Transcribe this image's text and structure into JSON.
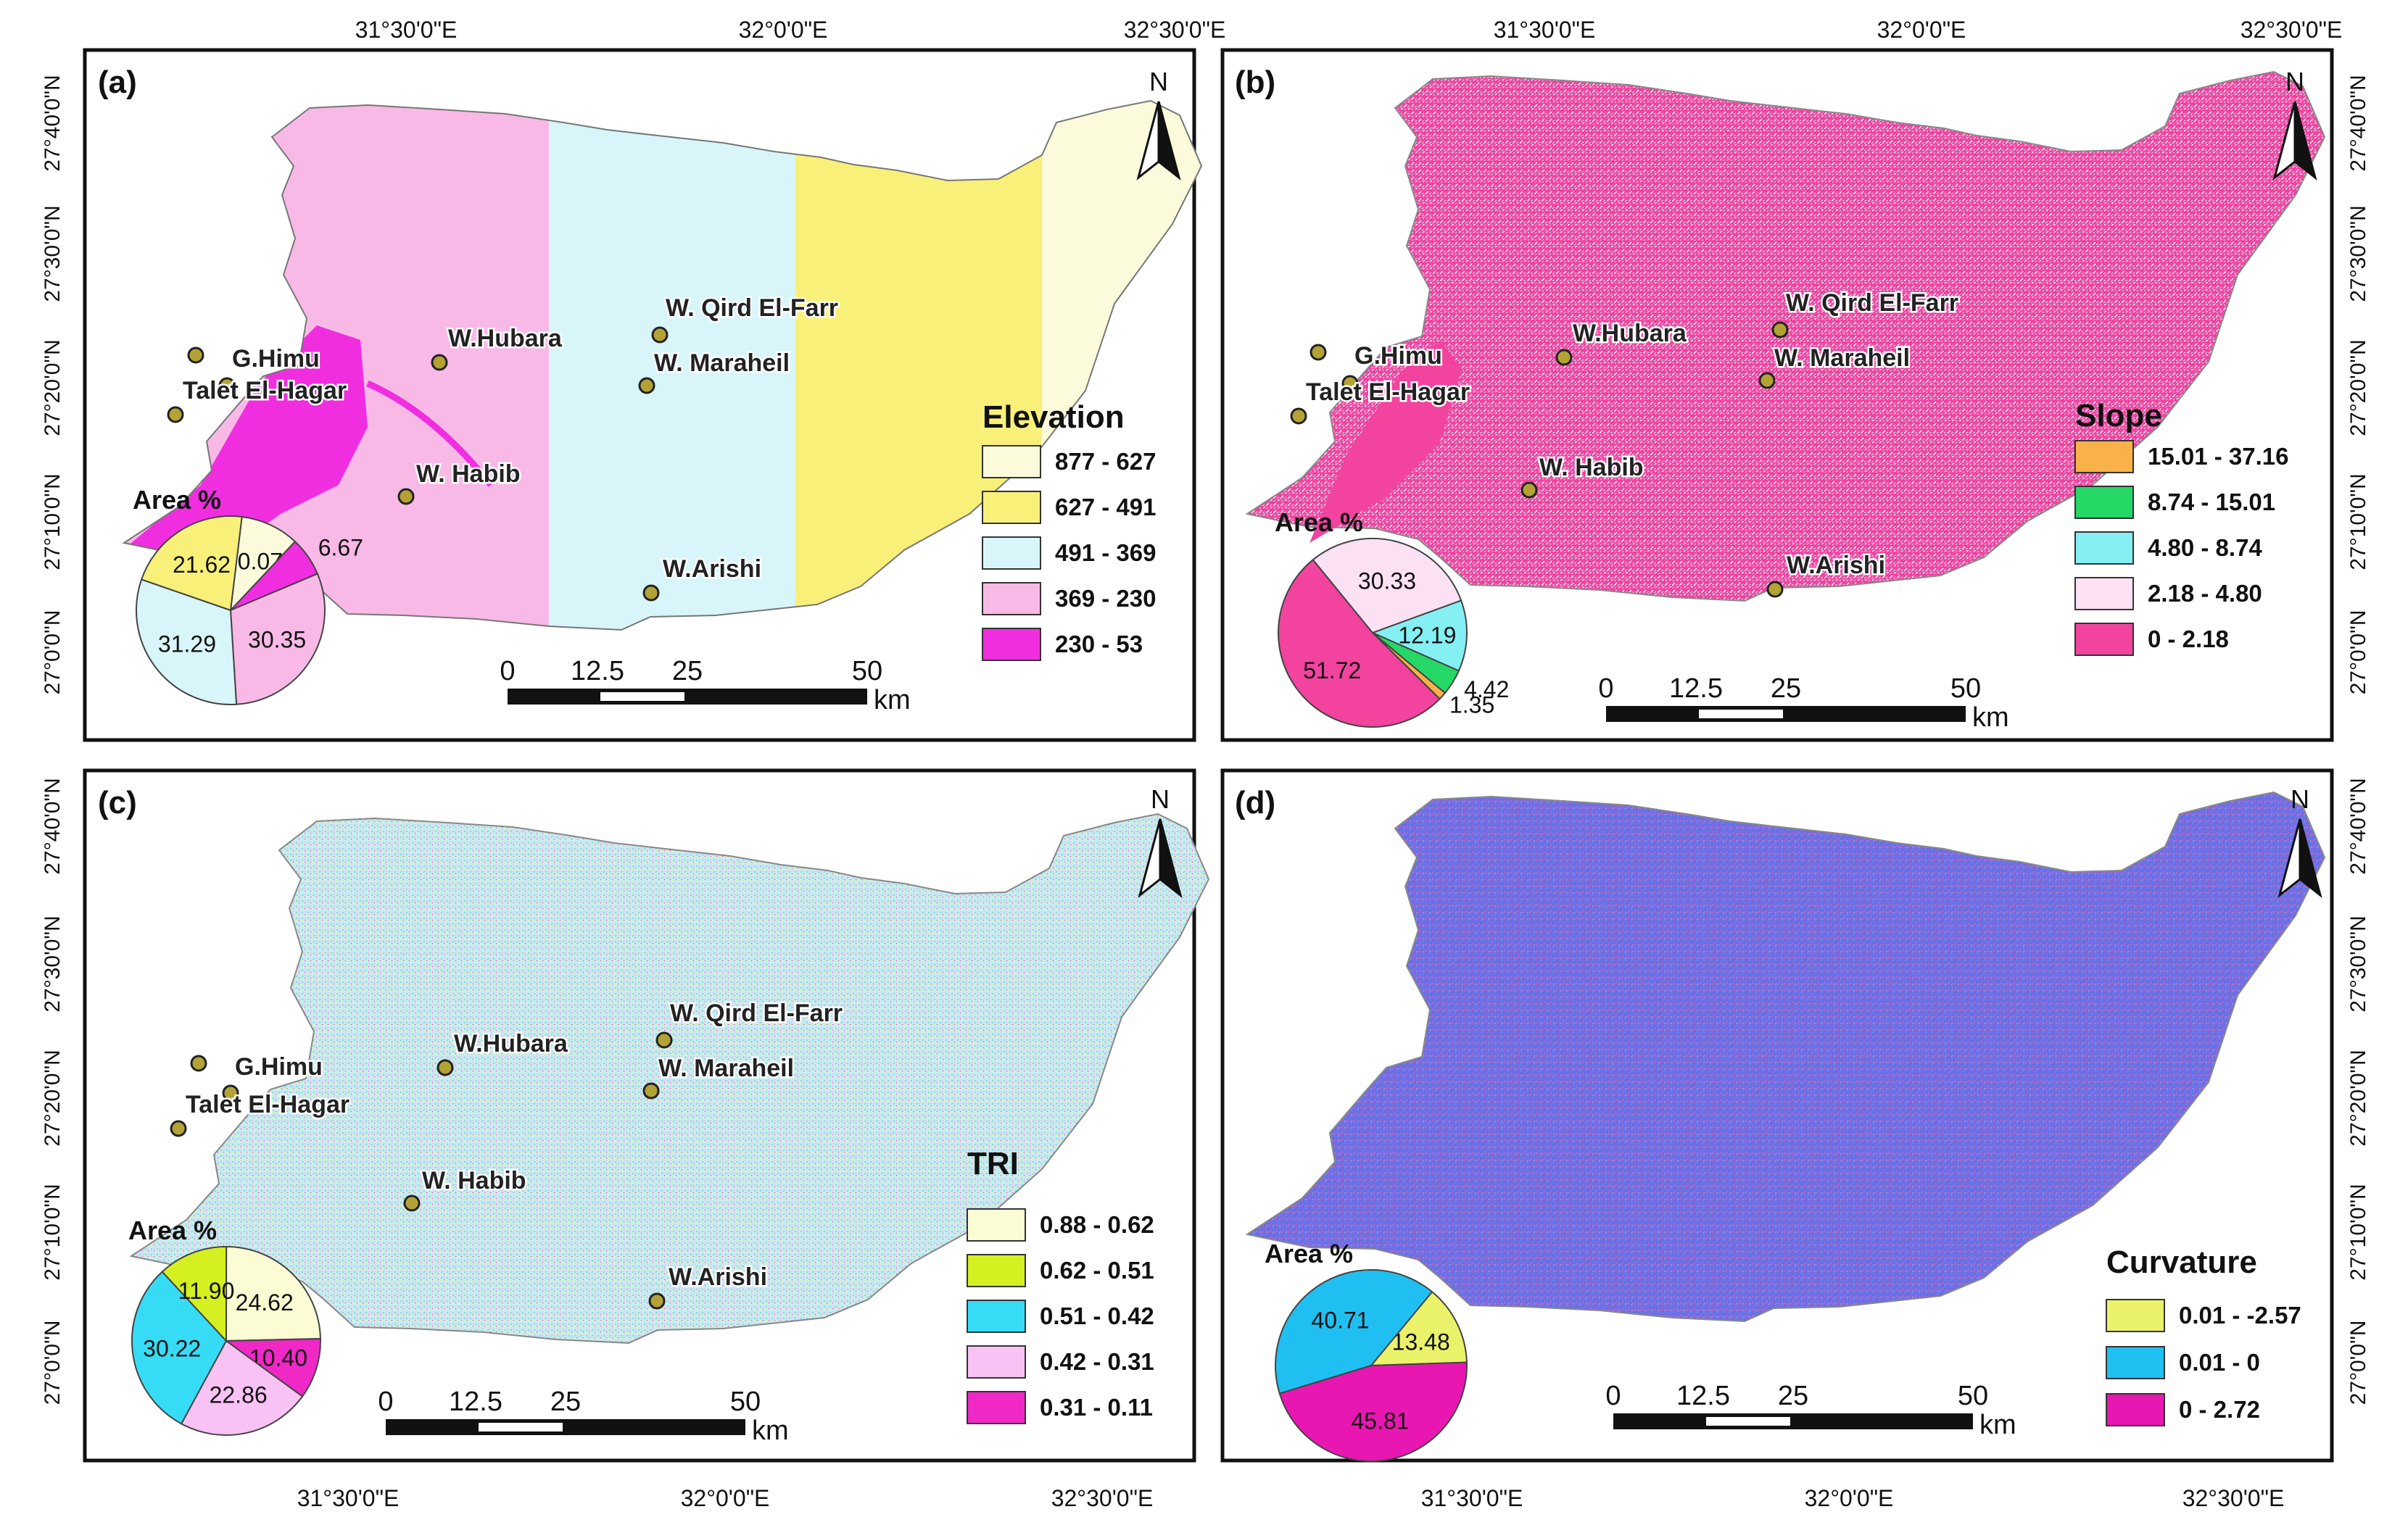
{
  "top_axis": {
    "labels": [
      "31°30'0\"E",
      "32°0'0\"E",
      "32°30'0\"E"
    ]
  },
  "bottom_axis": {
    "labels": [
      "31°30'0\"E",
      "32°0'0\"E",
      "32°30'0\"E"
    ]
  },
  "left_axis": {
    "labels": [
      "27°40'0\"N",
      "27°30'0\"N",
      "27°20'0\"N",
      "27°10'0\"N",
      "27°0'0\"N"
    ]
  },
  "right_axis": {
    "labels": [
      "27°40'0\"N",
      "27°30'0\"N",
      "27°20'0\"N",
      "27°10'0\"N",
      "27°0'0\"N"
    ]
  },
  "north_label": "N",
  "scale_bar": {
    "ticks": [
      "0",
      "12.5",
      "25",
      "50"
    ],
    "unit": "km"
  },
  "locations": [
    {
      "name": "G.Himu"
    },
    {
      "name": "Talet El-Hagar"
    },
    {
      "name": "W.Hubara"
    },
    {
      "name": "W. Qird El-Farr"
    },
    {
      "name": "W. Maraheil"
    },
    {
      "name": "W. Habib"
    },
    {
      "name": "W.Arishi"
    }
  ],
  "panels": [
    {
      "tag": "(a)",
      "legend_title": "Elevation",
      "pie_title": "Area %",
      "classes": [
        {
          "label": "877 - 627",
          "color": "#fbfbdc",
          "area": 10.07
        },
        {
          "label": "627 - 491",
          "color": "#f9f07a",
          "area": 21.62
        },
        {
          "label": "491 - 369",
          "color": "#d8f6f9",
          "area": 31.29
        },
        {
          "label": "369 - 230",
          "color": "#f8b9e6",
          "area": 30.35
        },
        {
          "label": "230 - 53",
          "color": "#f02ee0",
          "area": 6.67
        }
      ]
    },
    {
      "tag": "(b)",
      "legend_title": "Slope",
      "pie_title": "Area %",
      "classes": [
        {
          "label": "15.01 - 37.16",
          "color": "#fbb14a",
          "area": 1.35
        },
        {
          "label": "8.74 - 15.01",
          "color": "#26d866",
          "area": 4.42
        },
        {
          "label": "4.80 - 8.74",
          "color": "#85f0f4",
          "area": 12.19
        },
        {
          "label": "2.18 - 4.80",
          "color": "#fce1f4",
          "area": 30.33
        },
        {
          "label": "0 - 2.18",
          "color": "#f2439f",
          "area": 51.72
        }
      ]
    },
    {
      "tag": "(c)",
      "legend_title": "TRI",
      "pie_title": "Area %",
      "classes": [
        {
          "label": "0.88 - 0.62",
          "color": "#fbfbd4",
          "area": 24.62
        },
        {
          "label": "0.62 - 0.51",
          "color": "#d4f021",
          "area": 11.9
        },
        {
          "label": "0.51 - 0.42",
          "color": "#36dcf6",
          "area": 30.22
        },
        {
          "label": "0.42 - 0.31",
          "color": "#f8c2f4",
          "area": 22.86
        },
        {
          "label": "0.31 - 0.11",
          "color": "#ef28c6",
          "area": 10.4
        }
      ]
    },
    {
      "tag": "(d)",
      "legend_title": "Curvature",
      "pie_title": "Area %",
      "classes": [
        {
          "label": "0.01 - -2.57",
          "color": "#eaf26a",
          "area": 13.48
        },
        {
          "label": "0.01 - 0",
          "color": "#1fc0f1",
          "area": 40.71
        },
        {
          "label": "0 - 2.72",
          "color": "#e917b1",
          "area": 45.81
        }
      ]
    }
  ]
}
